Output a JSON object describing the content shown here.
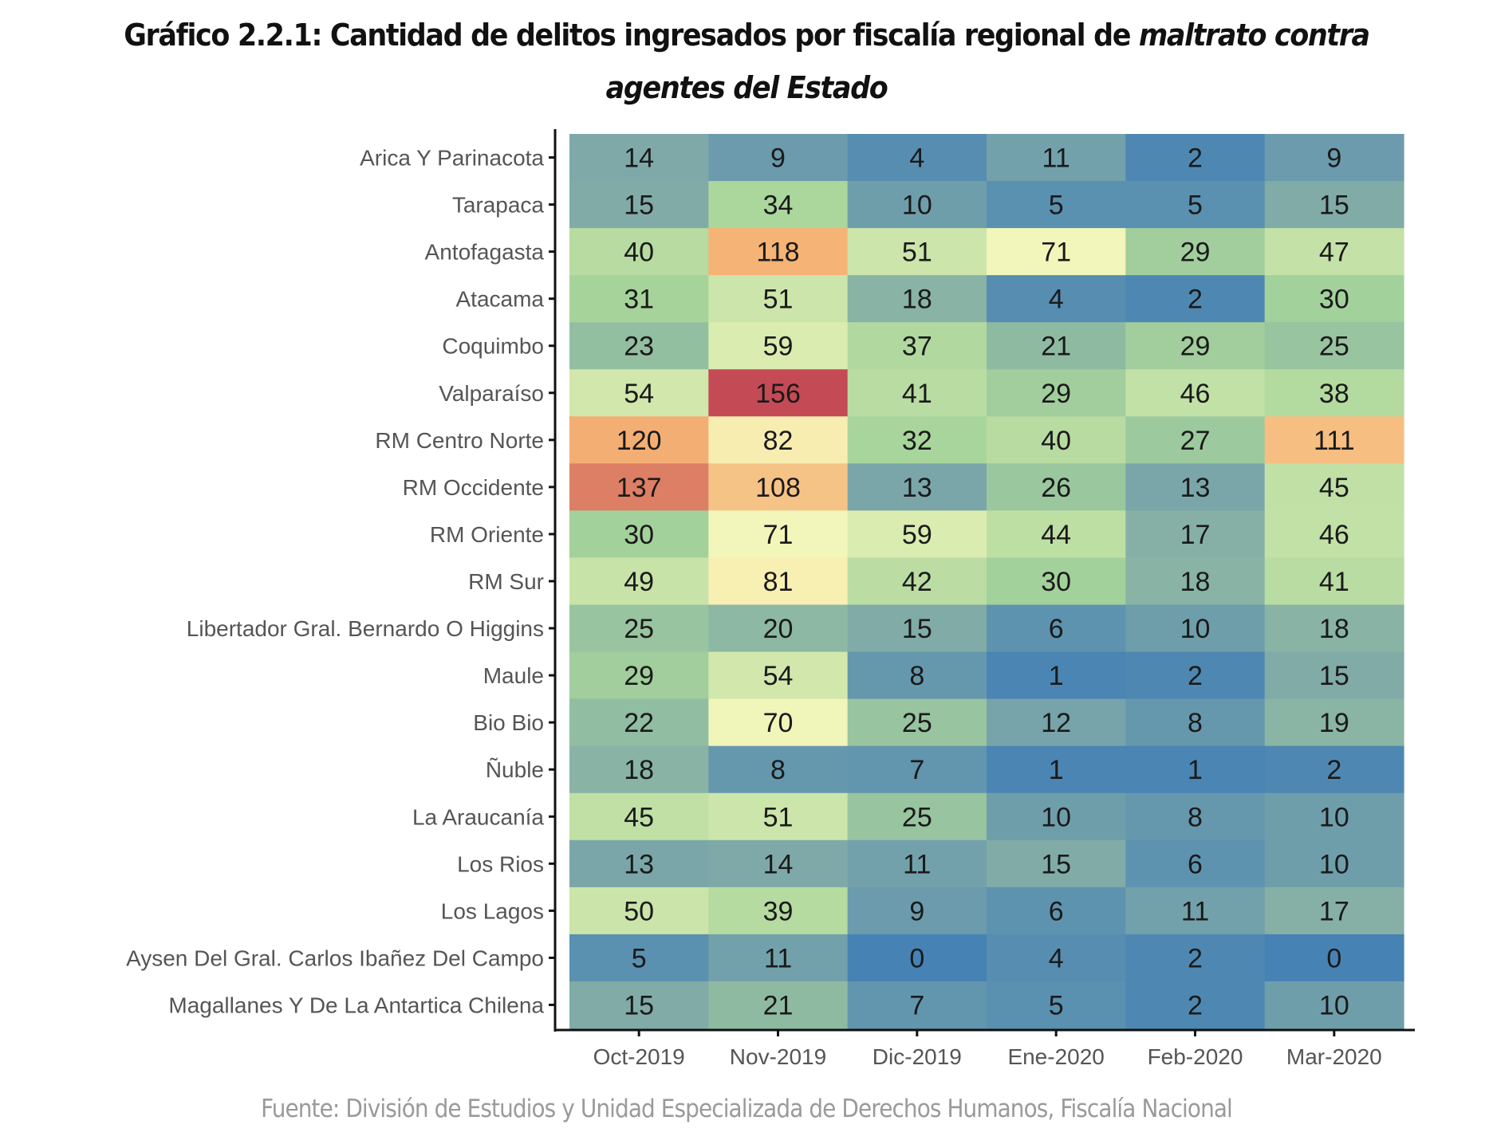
{
  "title": {
    "prefix": "Gráfico 2.2.1: Cantidad de delitos ingresados por fiscalía regional de ",
    "italic_part1": "maltrato contra",
    "italic_part2": "agentes del Estado"
  },
  "footer": "Fuente: División de Estudios y Unidad Especializada de Derechos Humanos, Fiscalía Nacional",
  "chart_data": {
    "type": "heatmap",
    "title": "Gráfico 2.2.1: Cantidad de delitos ingresados por fiscalía regional de maltrato contra agentes del Estado",
    "xlabel": "",
    "ylabel": "",
    "x": [
      "Oct-2019",
      "Nov-2019",
      "Dic-2019",
      "Ene-2020",
      "Feb-2020",
      "Mar-2020"
    ],
    "y": [
      "Arica Y Parinacota",
      "Tarapaca",
      "Antofagasta",
      "Atacama",
      "Coquimbo",
      "Valparaíso",
      "RM Centro Norte",
      "RM Occidente",
      "RM Oriente",
      "RM Sur",
      "Libertador Gral. Bernardo O Higgins",
      "Maule",
      "Bio Bio",
      "Ñuble",
      "La Araucanía",
      "Los Rios",
      "Los Lagos",
      "Aysen Del Gral. Carlos Ibañez Del Campo",
      "Magallanes Y De La Antartica Chilena"
    ],
    "values": [
      [
        14,
        9,
        4,
        11,
        2,
        9
      ],
      [
        15,
        34,
        10,
        5,
        5,
        15
      ],
      [
        40,
        118,
        51,
        71,
        29,
        47
      ],
      [
        31,
        51,
        18,
        4,
        2,
        30
      ],
      [
        23,
        59,
        37,
        21,
        29,
        25
      ],
      [
        54,
        156,
        41,
        29,
        46,
        38
      ],
      [
        120,
        82,
        32,
        40,
        27,
        111
      ],
      [
        137,
        108,
        13,
        26,
        13,
        45
      ],
      [
        30,
        71,
        59,
        44,
        17,
        46
      ],
      [
        49,
        81,
        42,
        30,
        18,
        41
      ],
      [
        25,
        20,
        15,
        6,
        10,
        18
      ],
      [
        29,
        54,
        8,
        1,
        2,
        15
      ],
      [
        22,
        70,
        25,
        12,
        8,
        19
      ],
      [
        18,
        8,
        7,
        1,
        1,
        2
      ],
      [
        45,
        51,
        25,
        10,
        8,
        10
      ],
      [
        13,
        14,
        11,
        15,
        6,
        10
      ],
      [
        50,
        39,
        9,
        6,
        11,
        17
      ],
      [
        5,
        11,
        0,
        4,
        2,
        0
      ],
      [
        15,
        21,
        7,
        5,
        2,
        10
      ]
    ],
    "value_range": [
      0,
      156
    ],
    "colormap": "Spectral (reversed), low = blue, high = red",
    "color_stops": [
      "#4682b4",
      "#7fa9a8",
      "#a6d49a",
      "#f9f9bd",
      "#f5b274",
      "#c44a55"
    ],
    "cell_labels": true,
    "legend": "none",
    "grid": false
  }
}
